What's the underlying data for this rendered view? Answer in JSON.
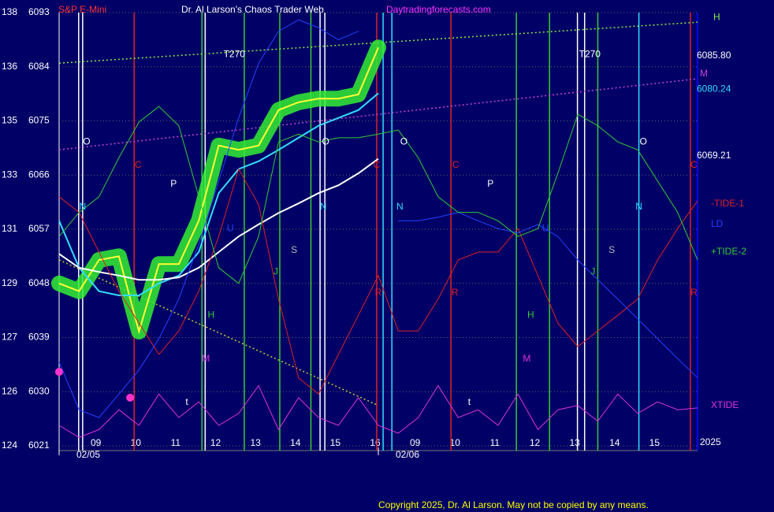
{
  "chart_data": {
    "type": "line",
    "instrument": "S&P E-Mini",
    "title": "Dr. Al Larson's Chaos Trader Web",
    "website": "Daytradingforecasts.com",
    "copyright": "Copyright 2025, Dr. Al Larson. May not be copied by any means.",
    "year_label": "2025",
    "xlim": [
      0,
      16
    ],
    "ylim": [
      6021,
      6093
    ],
    "yticks": [
      6093,
      6084,
      6075,
      6066,
      6057,
      6048,
      6039,
      6030,
      6021
    ],
    "left_scale": [
      138,
      136,
      135,
      133,
      131,
      129,
      127,
      126,
      124
    ],
    "xticks": [
      {
        "value": 1,
        "label": "09"
      },
      {
        "value": 2,
        "label": "10"
      },
      {
        "value": 3,
        "label": "11"
      },
      {
        "value": 4,
        "label": "12"
      },
      {
        "value": 5,
        "label": "13"
      },
      {
        "value": 6,
        "label": "14"
      },
      {
        "value": 7,
        "label": "15"
      },
      {
        "value": 8,
        "label": "16"
      },
      {
        "value": 9,
        "label": "09"
      },
      {
        "value": 10,
        "label": "10"
      },
      {
        "value": 11,
        "label": "11"
      },
      {
        "value": 12,
        "label": "12"
      },
      {
        "value": 13,
        "label": "13"
      },
      {
        "value": 14,
        "label": "14"
      },
      {
        "value": 15,
        "label": "15"
      }
    ],
    "date_labels": [
      {
        "value": 0,
        "label": "02/05"
      },
      {
        "value": 8,
        "label": "02/06"
      }
    ],
    "grid": true,
    "x": [
      0,
      0.5,
      1,
      1.5,
      2,
      2.5,
      3,
      3.5,
      4,
      4.5,
      5,
      5.5,
      6,
      6.5,
      7,
      7.5,
      8,
      8.5,
      9,
      9.5,
      10,
      10.5,
      11,
      11.5,
      12,
      12.5,
      13,
      13.5,
      14,
      14.5,
      15,
      15.5,
      16
    ],
    "series": [
      {
        "color": "#ffff33",
        "glow": "#33ee33",
        "values": [
          6048.0,
          6046.7,
          6051.9,
          6052.5,
          6040.0,
          6051.2,
          6051.2,
          6058.4,
          6070.9,
          6070.2,
          6070.9,
          6076.8,
          6078.1,
          6078.7,
          6078.7,
          6079.4,
          6087.2,
          null,
          null,
          null,
          null,
          null,
          null,
          null,
          null,
          null,
          null,
          null,
          null,
          null,
          null,
          null,
          null
        ]
      },
      {
        "color": "#33ddff",
        "values": [
          6058.4,
          6050.6,
          6046.7,
          6046.0,
          6046.0,
          6048.0,
          6049.3,
          6053.2,
          6063.0,
          6067.0,
          6068.3,
          6070.2,
          6072.2,
          6074.2,
          6075.5,
          6076.8,
          6079.6,
          null,
          null,
          null,
          null,
          null,
          null,
          null,
          null,
          null,
          null,
          null,
          null,
          null,
          null,
          null,
          null
        ]
      },
      {
        "color": "#ffffff",
        "values": [
          6052.9,
          6050.6,
          6049.9,
          6049.3,
          6048.6,
          6048.6,
          6049.0,
          6050.6,
          6053.2,
          6055.8,
          6057.8,
          6059.7,
          6061.3,
          6063.0,
          6064.3,
          6066.3,
          6068.7,
          null,
          null,
          null,
          null,
          null,
          null,
          null,
          null,
          null,
          null,
          null,
          null,
          null,
          null,
          null,
          null
        ]
      },
      {
        "name": "-TIDE-1",
        "color": "#dd2222",
        "values": [
          6062.4,
          6059.8,
          6053.2,
          6046.7,
          6041.4,
          6036.2,
          6040.1,
          6046.7,
          6055.8,
          6067.0,
          6061.1,
          6045.4,
          6032.3,
          6029.6,
          6036.2,
          6042.7,
          6049.3,
          6040.1,
          6040.1,
          6045.4,
          6051.9,
          6053.2,
          6053.2,
          6057.1,
          6049.3,
          6041.4,
          6037.5,
          6040.1,
          6042.7,
          6045.4,
          6051.9,
          6057.1,
          6061.7
        ]
      },
      {
        "name": "LD",
        "color": "#2244ff",
        "values": [
          6034.9,
          6027.0,
          6025.7,
          6029.6,
          6033.6,
          6038.8,
          6045.4,
          6054.5,
          6065.0,
          6075.5,
          6084.6,
          6089.9,
          6091.8,
          6090.5,
          6088.5,
          6089.9,
          null,
          6058.4,
          6058.4,
          6059.0,
          6059.8,
          6058.4,
          6057.1,
          6056.4,
          6057.8,
          6055.8,
          6051.9,
          6048.6,
          6045.4,
          6042.1,
          6038.8,
          6035.5,
          6032.3
        ]
      },
      {
        "name": "+TIDE-2",
        "color": "#33cc33",
        "values": [
          6055.8,
          6059.8,
          6062.4,
          6068.9,
          6074.8,
          6077.4,
          6074.2,
          6062.4,
          6050.6,
          6048.0,
          6055.8,
          6071.5,
          6072.8,
          6071.5,
          6072.2,
          6072.2,
          6072.8,
          6073.5,
          6068.9,
          6062.4,
          6059.8,
          6059.8,
          6058.4,
          6055.8,
          6057.1,
          6066.3,
          6076.1,
          6074.2,
          6071.5,
          6070.2,
          6065.0,
          6059.8,
          6051.9
        ]
      },
      {
        "name": "XTIDE",
        "color": "#dd33dd",
        "values": [
          6024.4,
          6022.4,
          6023.7,
          6027.0,
          6024.4,
          6029.6,
          6025.7,
          6028.3,
          6024.4,
          6026.4,
          6031.0,
          6023.7,
          6029.0,
          6025.7,
          6024.4,
          6029.0,
          6024.4,
          6023.1,
          6025.7,
          6031.0,
          6025.7,
          6027.0,
          6024.4,
          6029.6,
          6023.7,
          6027.0,
          6027.7,
          6025.1,
          6029.6,
          6026.4,
          6028.3,
          6027.0,
          6027.3
        ]
      }
    ],
    "trend_lines": [
      {
        "name": "H",
        "color": "#88ee44",
        "x": [
          0,
          16
        ],
        "values": [
          6084.6,
          6091.4
        ]
      },
      {
        "name": "M",
        "color": "#cc44cc",
        "x": [
          0,
          16
        ],
        "values": [
          6070.2,
          6082.0
        ]
      },
      {
        "color": "#cccc33",
        "x": [
          0,
          8
        ],
        "values": [
          6051.9,
          6027.7
        ]
      }
    ],
    "level_labels": [
      {
        "value": 6085.8,
        "label": "6085.80",
        "color": "#ffffff"
      },
      {
        "value": 6080.24,
        "label": "6080.24",
        "color": "#33ddff"
      },
      {
        "value": 6069.21,
        "label": "6069.21",
        "color": "#ffffff"
      }
    ],
    "vertical_lines": [
      {
        "x": 0.49,
        "color": "#ffffff"
      },
      {
        "x": 0.59,
        "color": "#ffffff"
      },
      {
        "x": 3.66,
        "color": "#ffffff"
      },
      {
        "x": 6.54,
        "color": "#ffffff"
      },
      {
        "x": 6.66,
        "color": "#ffffff"
      },
      {
        "x": 12.99,
        "color": "#ffffff"
      },
      {
        "x": 13.17,
        "color": "#ffffff"
      },
      {
        "x": 8.12,
        "color": "#33ddff"
      },
      {
        "x": 8.34,
        "color": "#33ddff"
      },
      {
        "x": 14.53,
        "color": "#33ddff"
      },
      {
        "x": 3.58,
        "color": "#33cc33"
      },
      {
        "x": 4.64,
        "color": "#33cc33"
      },
      {
        "x": 5.53,
        "color": "#33cc33"
      },
      {
        "x": 6.31,
        "color": "#33cc33"
      },
      {
        "x": 11.46,
        "color": "#33cc33"
      },
      {
        "x": 12.29,
        "color": "#33cc33"
      },
      {
        "x": 13.5,
        "color": "#33cc33"
      },
      {
        "x": 1.88,
        "color": "#dd2222"
      },
      {
        "x": 7.96,
        "color": "#dd2222"
      },
      {
        "x": 9.82,
        "color": "#dd2222"
      },
      {
        "x": 15.82,
        "color": "#dd2222"
      }
    ],
    "markers": [
      {
        "x": 0,
        "y": 6033.3,
        "color": "#ff33cc"
      },
      {
        "x": 1.78,
        "y": 6029.0,
        "color": "#ff33cc"
      }
    ],
    "annotations": [
      {
        "text": "T270",
        "x": 4.39,
        "y": 6086.0,
        "color": "#ffffff"
      },
      {
        "text": "T270",
        "x": 13.3,
        "y": 6086.0,
        "color": "#ffffff"
      },
      {
        "text": "O",
        "x": 0.69,
        "y": 6071.5,
        "color": "#ffffff"
      },
      {
        "text": "O",
        "x": 6.68,
        "y": 6071.5,
        "color": "#ffffff"
      },
      {
        "text": "O",
        "x": 8.64,
        "y": 6071.5,
        "color": "#ffffff"
      },
      {
        "text": "O",
        "x": 14.64,
        "y": 6071.5,
        "color": "#ffffff"
      },
      {
        "text": "C",
        "x": 1.98,
        "y": 6067.6,
        "color": "#dd2222"
      },
      {
        "text": "C",
        "x": 7.96,
        "y": 6067.6,
        "color": "#dd2222"
      },
      {
        "text": "C",
        "x": 9.94,
        "y": 6067.6,
        "color": "#dd2222"
      },
      {
        "text": "C",
        "x": 15.91,
        "y": 6067.6,
        "color": "#dd2222"
      },
      {
        "text": "N",
        "x": 0.59,
        "y": 6060.7,
        "color": "#33ddff"
      },
      {
        "text": "N",
        "x": 6.62,
        "y": 6060.7,
        "color": "#33ddff"
      },
      {
        "text": "N",
        "x": 8.54,
        "y": 6060.7,
        "color": "#33ddff"
      },
      {
        "text": "N",
        "x": 14.53,
        "y": 6060.7,
        "color": "#33ddff"
      },
      {
        "text": "P",
        "x": 2.87,
        "y": 6064.5,
        "color": "#ffffff"
      },
      {
        "text": "P",
        "x": 10.81,
        "y": 6064.5,
        "color": "#ffffff"
      },
      {
        "text": "S",
        "x": 5.89,
        "y": 6053.5,
        "color": "#bbbbbb"
      },
      {
        "text": "S",
        "x": 13.85,
        "y": 6053.5,
        "color": "#bbbbbb"
      },
      {
        "text": "J",
        "x": 5.43,
        "y": 6049.9,
        "color": "#33cc33"
      },
      {
        "text": "J",
        "x": 13.38,
        "y": 6049.9,
        "color": "#33cc33"
      },
      {
        "text": "H",
        "x": 3.81,
        "y": 6042.7,
        "color": "#33cc33"
      },
      {
        "text": "H",
        "x": 11.82,
        "y": 6042.7,
        "color": "#33cc33"
      },
      {
        "text": "M",
        "x": 3.68,
        "y": 6035.4,
        "color": "#dd33dd"
      },
      {
        "text": "M",
        "x": 11.72,
        "y": 6035.4,
        "color": "#dd33dd"
      },
      {
        "text": "t",
        "x": 3.2,
        "y": 6028.2,
        "color": "#ffffff"
      },
      {
        "text": "t",
        "x": 10.28,
        "y": 6028.2,
        "color": "#ffffff"
      },
      {
        "text": "R",
        "x": 8.0,
        "y": 6046.4,
        "color": "#dd2222"
      },
      {
        "text": "R",
        "x": 9.92,
        "y": 6046.4,
        "color": "#dd2222"
      },
      {
        "text": "R",
        "x": 15.91,
        "y": 6046.4,
        "color": "#dd2222"
      },
      {
        "text": "U",
        "x": 4.29,
        "y": 6057.1,
        "color": "#2244ff"
      },
      {
        "text": "U",
        "x": 12.19,
        "y": 6057.1,
        "color": "#2244ff"
      }
    ]
  }
}
